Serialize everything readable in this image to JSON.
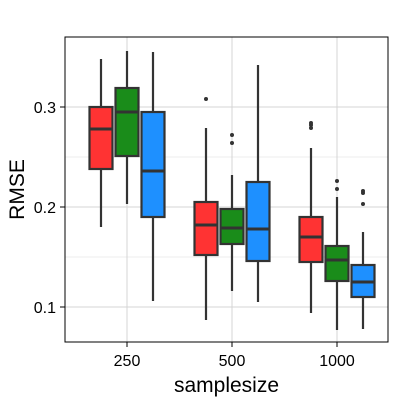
{
  "chart_data": {
    "type": "boxplot",
    "title": "",
    "xlabel": "samplesize",
    "ylabel": "RMSE",
    "ylim": [
      0.065,
      0.37
    ],
    "yticks": [
      0.1,
      0.2,
      0.3
    ],
    "ytick_labels": [
      "0.1",
      "0.2",
      "0.3"
    ],
    "categories": [
      "250",
      "500",
      "1000"
    ],
    "grid": true,
    "legend": "none",
    "series": [
      {
        "color": "#ff3333",
        "boxes": [
          {
            "category": "250",
            "whisker_low": 0.18,
            "q1": 0.238,
            "median": 0.278,
            "q3": 0.3,
            "whisker_high": 0.348,
            "outliers": []
          },
          {
            "category": "500",
            "whisker_low": 0.087,
            "q1": 0.152,
            "median": 0.182,
            "q3": 0.205,
            "whisker_high": 0.279,
            "outliers": [
              0.308
            ]
          },
          {
            "category": "1000",
            "whisker_low": 0.094,
            "q1": 0.145,
            "median": 0.17,
            "q3": 0.19,
            "whisker_high": 0.259,
            "outliers": [
              0.279,
              0.282,
              0.284
            ]
          }
        ]
      },
      {
        "color": "#1a8c1a",
        "boxes": [
          {
            "category": "250",
            "whisker_low": 0.203,
            "q1": 0.251,
            "median": 0.295,
            "q3": 0.319,
            "whisker_high": 0.356,
            "outliers": []
          },
          {
            "category": "500",
            "whisker_low": 0.116,
            "q1": 0.163,
            "median": 0.179,
            "q3": 0.198,
            "whisker_high": 0.232,
            "outliers": [
              0.264,
              0.272
            ]
          },
          {
            "category": "1000",
            "whisker_low": 0.077,
            "q1": 0.126,
            "median": 0.147,
            "q3": 0.161,
            "whisker_high": 0.21,
            "outliers": [
              0.218,
              0.226
            ]
          }
        ]
      },
      {
        "color": "#1e90ff",
        "boxes": [
          {
            "category": "250",
            "whisker_low": 0.106,
            "q1": 0.19,
            "median": 0.236,
            "q3": 0.295,
            "whisker_high": 0.355,
            "outliers": []
          },
          {
            "category": "500",
            "whisker_low": 0.105,
            "q1": 0.146,
            "median": 0.178,
            "q3": 0.225,
            "whisker_high": 0.342,
            "outliers": []
          },
          {
            "category": "1000",
            "whisker_low": 0.078,
            "q1": 0.11,
            "median": 0.125,
            "q3": 0.142,
            "whisker_high": 0.175,
            "outliers": [
              0.203,
              0.214,
              0.216
            ]
          }
        ]
      }
    ]
  }
}
